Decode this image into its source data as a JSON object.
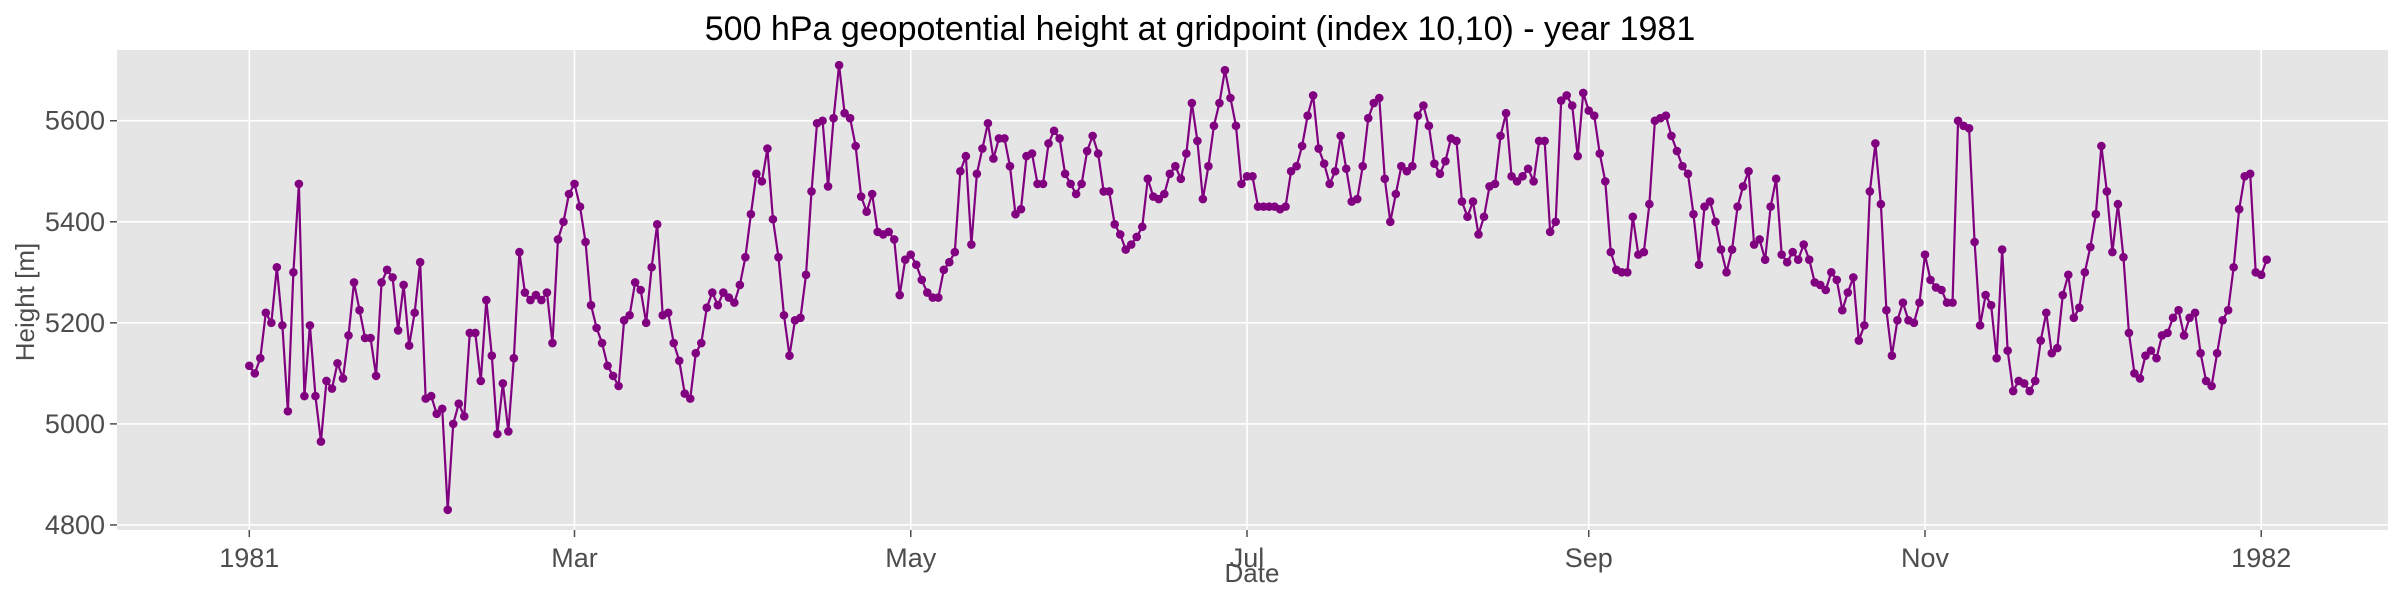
{
  "chart_data": {
    "type": "line",
    "title": "500 hPa geopotential height at gridpoint (index 10,10) - year 1981",
    "xlabel": "Date",
    "ylabel": "Height [m]",
    "ylim": [
      4790,
      5740
    ],
    "yticks": [
      4800,
      5000,
      5200,
      5400,
      5600
    ],
    "xlim": [
      "1980-12-08",
      "1982-01-24"
    ],
    "xticks": [
      {
        "date": "1981-01-01",
        "label": "1981"
      },
      {
        "date": "1981-03-01",
        "label": "Mar"
      },
      {
        "date": "1981-05-01",
        "label": "May"
      },
      {
        "date": "1981-07-01",
        "label": "Jul"
      },
      {
        "date": "1981-09-01",
        "label": "Sep"
      },
      {
        "date": "1981-11-01",
        "label": "Nov"
      },
      {
        "date": "1982-01-01",
        "label": "1982"
      }
    ],
    "grid": true,
    "marker": "circle",
    "colors": {
      "series": "#800080",
      "plot_background": "#e5e5e5",
      "grid": "#ffffff"
    },
    "series": [
      {
        "x_start": "1981-01-01",
        "x_step_days": 1,
        "values": [
          5115,
          5100,
          5130,
          5220,
          5200,
          5310,
          5195,
          5025,
          5300,
          5475,
          5055,
          5195,
          5055,
          4965,
          5085,
          5070,
          5120,
          5090,
          5175,
          5280,
          5225,
          5170,
          5170,
          5095,
          5280,
          5305,
          5290,
          5185,
          5275,
          5155,
          5220,
          5320,
          5050,
          5055,
          5020,
          5030,
          4830,
          5000,
          5040,
          5015,
          5180,
          5180,
          5085,
          5245,
          5135,
          4980,
          5080,
          4985,
          5130,
          5340,
          5260,
          5245,
          5255,
          5245,
          5260,
          5160,
          5365,
          5400,
          5455,
          5475,
          5430,
          5360,
          5235,
          5190,
          5160,
          5115,
          5095,
          5075,
          5205,
          5215,
          5280,
          5265,
          5200,
          5310,
          5395,
          5215,
          5220,
          5160,
          5125,
          5060,
          5050,
          5140,
          5160,
          5230,
          5260,
          5235,
          5260,
          5250,
          5240,
          5275,
          5330,
          5415,
          5495,
          5480,
          5545,
          5405,
          5330,
          5215,
          5135,
          5205,
          5210,
          5295,
          5460,
          5595,
          5600,
          5470,
          5605,
          5710,
          5615,
          5605,
          5550,
          5450,
          5420,
          5455,
          5380,
          5375,
          5380,
          5365,
          5255,
          5325,
          5335,
          5315,
          5285,
          5260,
          5250,
          5250,
          5305,
          5320,
          5340,
          5500,
          5530,
          5355,
          5495,
          5545,
          5595,
          5525,
          5565,
          5565,
          5510,
          5415,
          5425,
          5530,
          5535,
          5475,
          5475,
          5555,
          5580,
          5565,
          5495,
          5475,
          5455,
          5475,
          5540,
          5570,
          5535,
          5460,
          5460,
          5395,
          5375,
          5345,
          5355,
          5370,
          5390,
          5485,
          5450,
          5445,
          5455,
          5495,
          5510,
          5485,
          5535,
          5635,
          5560,
          5445,
          5510,
          5590,
          5635,
          5700,
          5645,
          5590,
          5475,
          5490,
          5490,
          5430,
          5430,
          5430,
          5430,
          5425,
          5430,
          5500,
          5510,
          5550,
          5610,
          5650,
          5545,
          5515,
          5475,
          5500,
          5570,
          5505,
          5440,
          5445,
          5510,
          5605,
          5635,
          5645,
          5485,
          5400,
          5455,
          5510,
          5500,
          5510,
          5610,
          5630,
          5590,
          5515,
          5495,
          5520,
          5565,
          5560,
          5440,
          5410,
          5440,
          5375,
          5410,
          5470,
          5475,
          5570,
          5615,
          5490,
          5480,
          5490,
          5505,
          5480,
          5560,
          5560,
          5380,
          5400,
          5640,
          5650,
          5630,
          5530,
          5655,
          5620,
          5610,
          5535,
          5480,
          5340,
          5305,
          5300,
          5300,
          5410,
          5335,
          5340,
          5435,
          5600,
          5605,
          5610,
          5570,
          5540,
          5510,
          5495,
          5415,
          5315,
          5430,
          5440,
          5400,
          5345,
          5300,
          5345,
          5430,
          5470,
          5500,
          5355,
          5365,
          5325,
          5430,
          5485,
          5335,
          5320,
          5340,
          5325,
          5355,
          5325,
          5280,
          5275,
          5265,
          5300,
          5285,
          5225,
          5260,
          5290,
          5165,
          5195,
          5460,
          5555,
          5435,
          5225,
          5135,
          5205,
          5240,
          5205,
          5200,
          5240,
          5335,
          5285,
          5270,
          5265,
          5240,
          5240,
          5600,
          5590,
          5585,
          5360,
          5195,
          5255,
          5235,
          5130,
          5345,
          5145,
          5065,
          5085,
          5080,
          5065,
          5085,
          5165,
          5220,
          5140,
          5150,
          5255,
          5295,
          5210,
          5230,
          5300,
          5350,
          5415,
          5550,
          5460,
          5340,
          5435,
          5330,
          5180,
          5100,
          5090,
          5135,
          5145,
          5130,
          5175,
          5180,
          5210,
          5225,
          5175,
          5210,
          5220,
          5140,
          5085,
          5075,
          5140,
          5205,
          5225,
          5310,
          5425,
          5490,
          5495,
          5300,
          5295,
          5325
        ]
      }
    ]
  }
}
